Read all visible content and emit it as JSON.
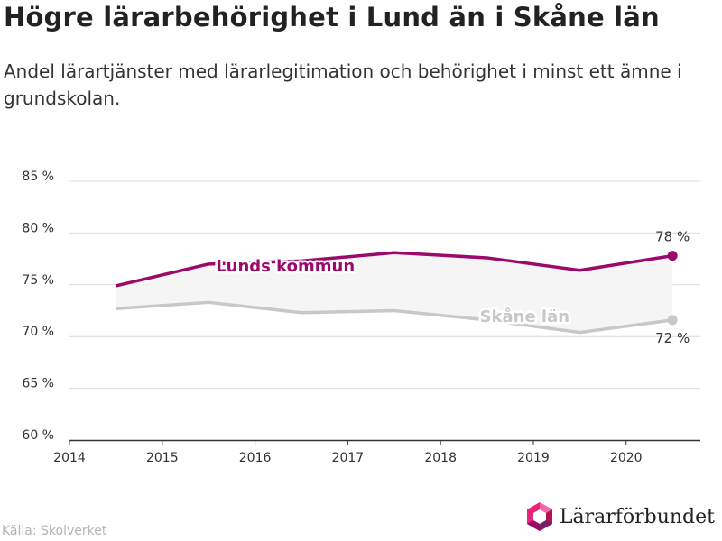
{
  "title": "Högre lärarbehörighet i Lund än i Skåne län",
  "subtitle": "Andel lärartjänster med lärarlegitimation och behörighet i minst ett ämne i grundskolan.",
  "source": "Källa: Skolverket",
  "logo_text": "Lärarförbundet",
  "chart_data": {
    "type": "line",
    "x_ticks": [
      "2014",
      "2015",
      "2016",
      "2017",
      "2018",
      "2019",
      "2020"
    ],
    "y_ticks": [
      "60 %",
      "65 %",
      "70 %",
      "75 %",
      "80 %",
      "85 %"
    ],
    "ylim": [
      60,
      85
    ],
    "xlim": [
      2014,
      2020.8
    ],
    "grid": true,
    "series": [
      {
        "name": "Lunds kommun",
        "color": "#9b0a6b",
        "x": [
          2014.5,
          2015.5,
          2016.5,
          2017.5,
          2018.5,
          2019.5,
          2020.5
        ],
        "values": [
          74.9,
          77.0,
          77.3,
          78.1,
          77.6,
          76.4,
          77.8
        ],
        "end_label": "78 %"
      },
      {
        "name": "Skåne län",
        "color": "#c8c8c8",
        "x": [
          2014.5,
          2015.5,
          2016.5,
          2017.5,
          2018.5,
          2019.5,
          2020.5
        ],
        "values": [
          72.7,
          73.3,
          72.3,
          72.5,
          71.6,
          70.4,
          71.6
        ],
        "end_label": "72 %"
      }
    ]
  }
}
